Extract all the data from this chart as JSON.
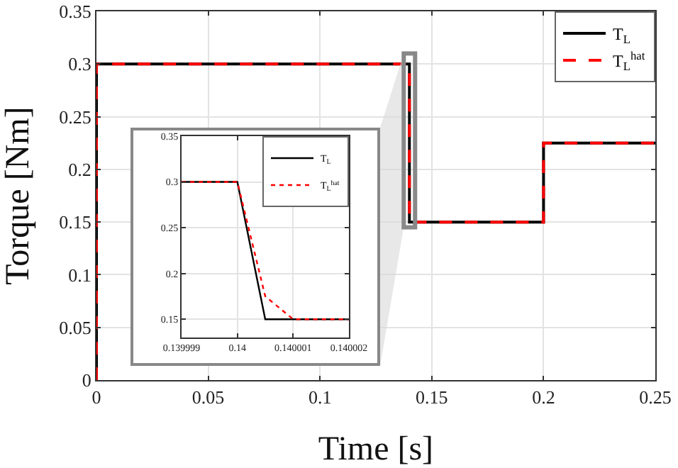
{
  "chart_data": [
    {
      "type": "line",
      "xlabel": "Time [s]",
      "ylabel": "Torque [Nm]",
      "xlim": [
        0,
        0.25
      ],
      "ylim": [
        0,
        0.35
      ],
      "xticks": [
        0,
        0.05,
        0.1,
        0.15,
        0.2,
        0.25
      ],
      "yticks": [
        0,
        0.05,
        0.1,
        0.15,
        0.2,
        0.25,
        0.3,
        0.35
      ],
      "grid": true,
      "legend": "top right",
      "series": [
        {
          "name": "T$_{L}$",
          "color": "#000000",
          "line_style": "solid",
          "x": [
            0,
            0,
            0.14,
            0.14,
            0.2,
            0.2,
            0.25
          ],
          "values": [
            0,
            0.3,
            0.3,
            0.15,
            0.15,
            0.225,
            0.225
          ]
        },
        {
          "name": "T$_{L}$$^{hat}$",
          "color": "#ff0000",
          "line_style": "dashed",
          "x": [
            0,
            0,
            0.14,
            0.14,
            0.2,
            0.2,
            0.25
          ],
          "values": [
            0,
            0.3,
            0.3,
            0.15,
            0.15,
            0.225,
            0.225
          ]
        }
      ]
    },
    {
      "type": "line",
      "xlim": [
        0.139999,
        0.140002
      ],
      "ylim": [
        0.13,
        0.35
      ],
      "xticks": [
        0.139999,
        0.14,
        0.140001,
        0.140002
      ],
      "yticks": [
        0.15,
        0.2,
        0.25,
        0.3,
        0.35
      ],
      "grid": true,
      "legend": "top right",
      "series": [
        {
          "name": "T$_{L}$",
          "color": "#000000",
          "line_style": "solid",
          "x": [
            0.139999,
            0.14,
            0.1400005,
            0.140002
          ],
          "values": [
            0.3,
            0.3,
            0.15,
            0.15
          ]
        },
        {
          "name": "T$_{L}$$^{hat}$",
          "color": "#ff0000",
          "line_style": "dotted",
          "x": [
            0.139999,
            0.14,
            0.1400005,
            0.140001,
            0.140002
          ],
          "values": [
            0.3,
            0.3,
            0.175,
            0.15,
            0.15
          ]
        }
      ]
    }
  ]
}
